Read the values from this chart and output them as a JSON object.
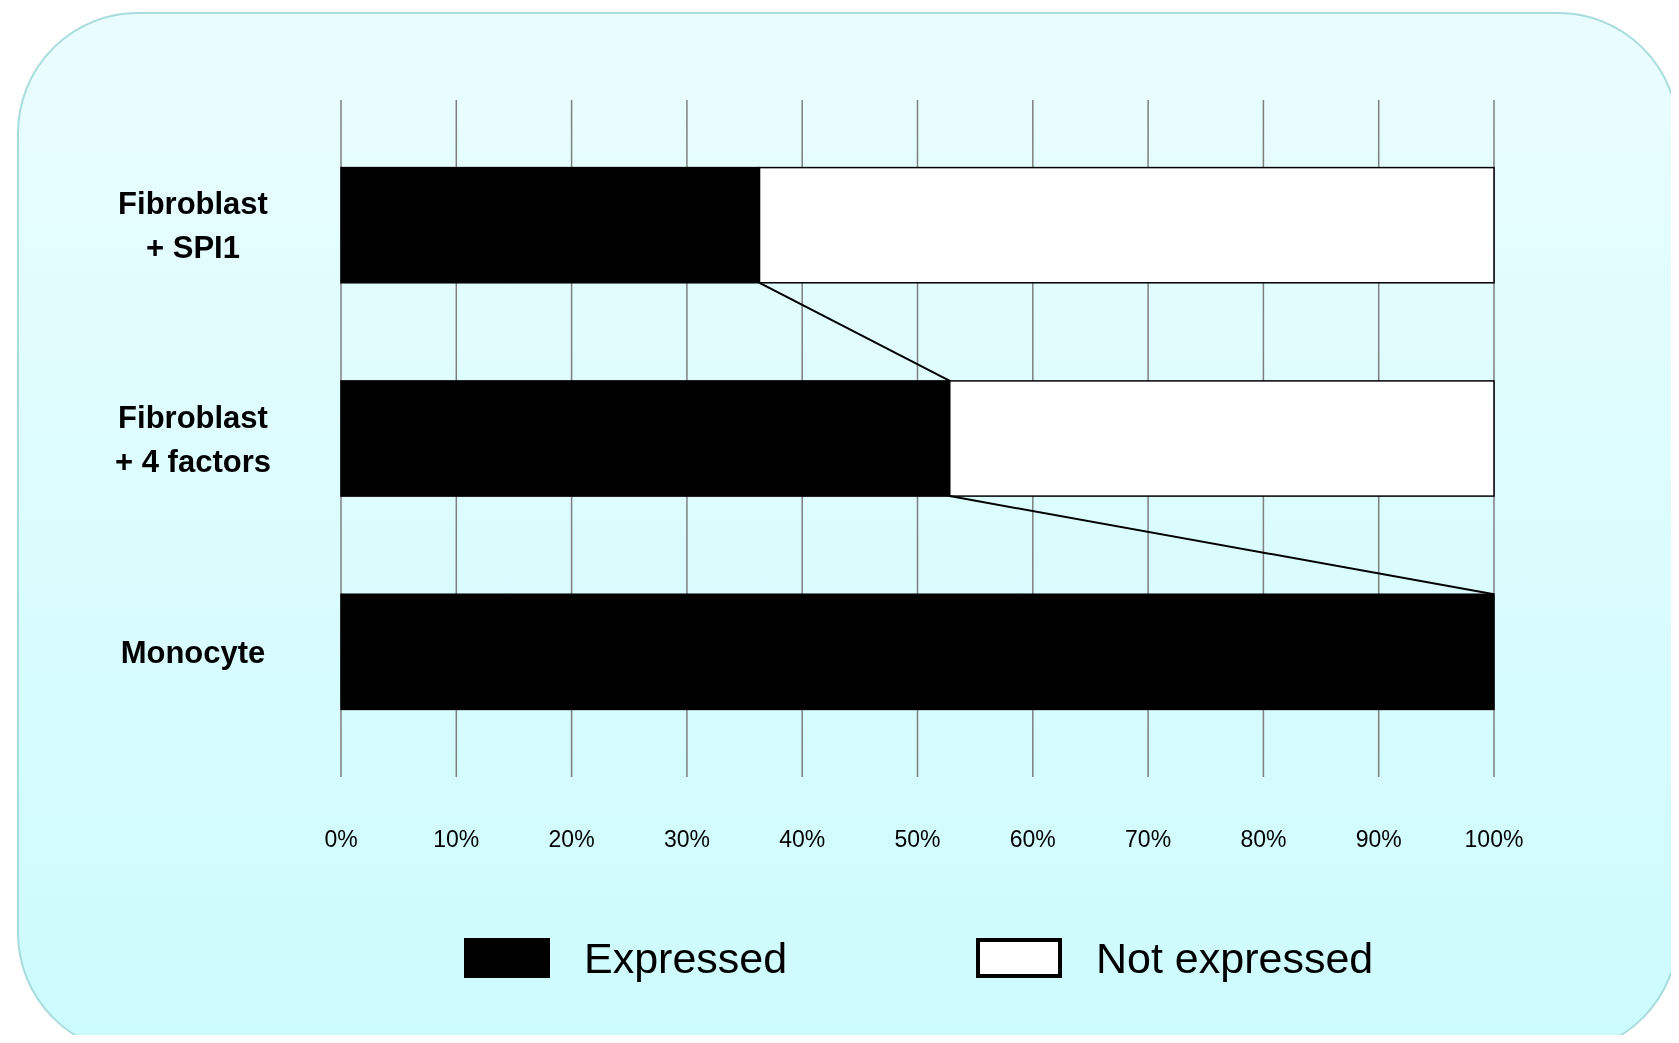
{
  "chart_data": {
    "type": "bar",
    "orientation": "horizontal",
    "stacked": true,
    "categories": [
      "Fibroblast\n+ SPI1",
      "Fibroblast\n+ 4 factors",
      "Monocyte"
    ],
    "series": [
      {
        "name": "Expressed",
        "color": "#000000",
        "values": [
          36.3,
          52.8,
          100
        ]
      },
      {
        "name": "Not expressed",
        "color": "#ffffff",
        "values": [
          63.7,
          47.2,
          0
        ]
      }
    ],
    "xlim": [
      0,
      100
    ],
    "xticks": [
      {
        "value": 0,
        "label": "0%"
      },
      {
        "value": 10,
        "label": "10%"
      },
      {
        "value": 20,
        "label": "20%"
      },
      {
        "value": 30,
        "label": "30%"
      },
      {
        "value": 40,
        "label": "40%"
      },
      {
        "value": 50,
        "label": "50%"
      },
      {
        "value": 60,
        "label": "60%"
      },
      {
        "value": 70,
        "label": "70%"
      },
      {
        "value": 80,
        "label": "80%"
      },
      {
        "value": 90,
        "label": "90%"
      },
      {
        "value": 100,
        "label": "100%"
      }
    ],
    "grid": "x",
    "legend": "bottom"
  }
}
